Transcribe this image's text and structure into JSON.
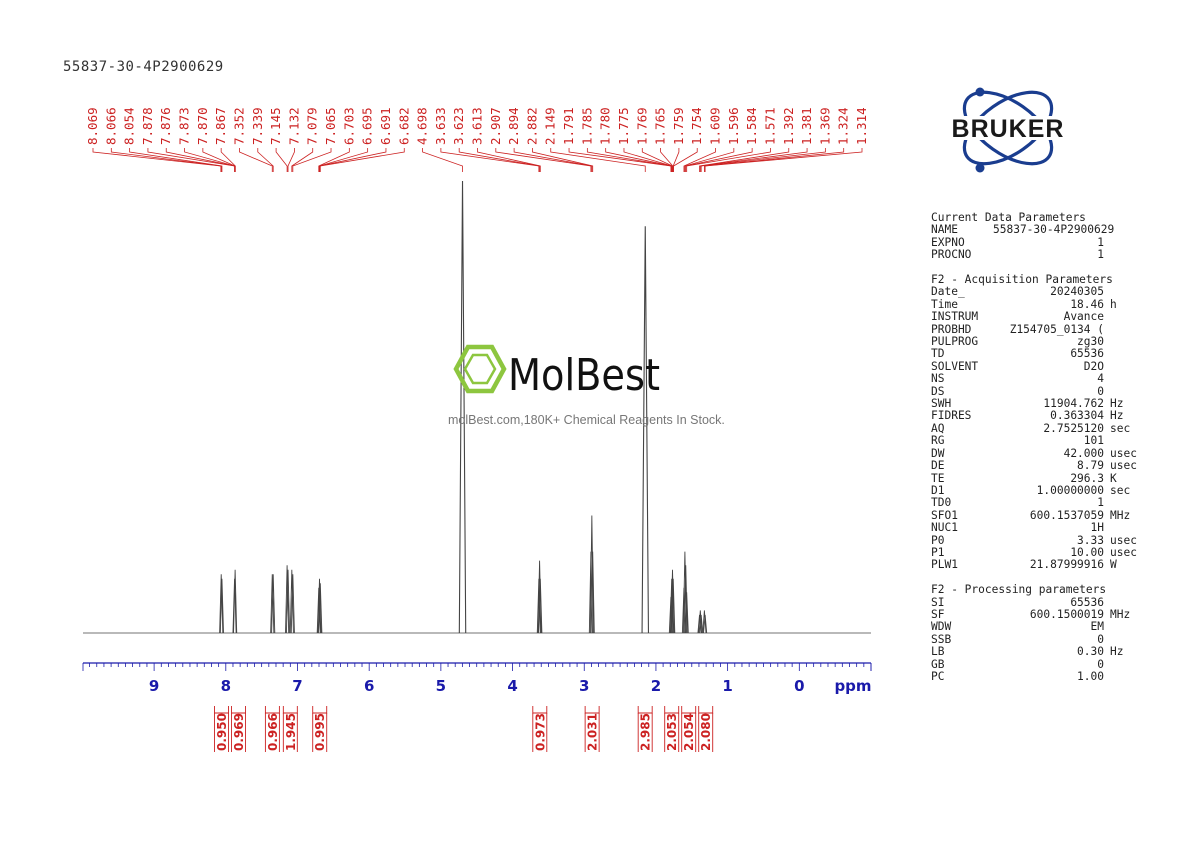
{
  "sample_title": "55837-30-4P2900629",
  "watermark": {
    "brand": "MolBest",
    "tagline": "molBest.com,180K+ Chemical Reagents In Stock."
  },
  "logo": {
    "text": "BRUKER",
    "icon": "bruker-atom-logo"
  },
  "colors": {
    "peak_labels": "#cc2222",
    "axis": "#1a1aaa",
    "spectrum": "#444444",
    "logo": "#1a3d8f",
    "watermark_green": "#8dc63f"
  },
  "chart_data": {
    "type": "line",
    "title": "",
    "xlabel": "ppm",
    "ylabel": "",
    "xlim": [
      9.992,
      -1.0
    ],
    "x_reversed": true,
    "x_ticks": [
      9,
      8,
      7,
      6,
      5,
      4,
      3,
      2,
      1,
      0
    ],
    "x_tick_labels": [
      "9",
      "8",
      "7",
      "6",
      "5",
      "4",
      "3",
      "2",
      "1",
      "0"
    ],
    "grid": false,
    "peak_labels": [
      "8.069",
      "8.066",
      "8.054",
      "7.878",
      "7.876",
      "7.873",
      "7.870",
      "7.867",
      "7.352",
      "7.339",
      "7.145",
      "7.132",
      "7.079",
      "7.065",
      "6.703",
      "6.695",
      "6.691",
      "6.682",
      "4.698",
      "3.633",
      "3.623",
      "3.613",
      "2.907",
      "2.894",
      "2.882",
      "2.149",
      "1.791",
      "1.785",
      "1.780",
      "1.775",
      "1.769",
      "1.765",
      "1.759",
      "1.754",
      "1.609",
      "1.596",
      "1.584",
      "1.571",
      "1.392",
      "1.381",
      "1.369",
      "1.324",
      "1.314"
    ],
    "peaks": [
      {
        "ppm": 8.064,
        "height": 0.13
      },
      {
        "ppm": 8.054,
        "height": 0.12
      },
      {
        "ppm": 7.878,
        "height": 0.12
      },
      {
        "ppm": 7.87,
        "height": 0.14
      },
      {
        "ppm": 7.352,
        "height": 0.13
      },
      {
        "ppm": 7.339,
        "height": 0.13
      },
      {
        "ppm": 7.145,
        "height": 0.15
      },
      {
        "ppm": 7.132,
        "height": 0.14
      },
      {
        "ppm": 7.079,
        "height": 0.14
      },
      {
        "ppm": 7.065,
        "height": 0.13
      },
      {
        "ppm": 6.703,
        "height": 0.1
      },
      {
        "ppm": 6.693,
        "height": 0.12
      },
      {
        "ppm": 6.682,
        "height": 0.11
      },
      {
        "ppm": 4.698,
        "height": 1.0
      },
      {
        "ppm": 3.633,
        "height": 0.12
      },
      {
        "ppm": 3.623,
        "height": 0.16
      },
      {
        "ppm": 3.613,
        "height": 0.12
      },
      {
        "ppm": 2.907,
        "height": 0.18
      },
      {
        "ppm": 2.894,
        "height": 0.26
      },
      {
        "ppm": 2.882,
        "height": 0.18
      },
      {
        "ppm": 2.149,
        "height": 0.9
      },
      {
        "ppm": 1.791,
        "height": 0.08
      },
      {
        "ppm": 1.78,
        "height": 0.12
      },
      {
        "ppm": 1.769,
        "height": 0.14
      },
      {
        "ppm": 1.759,
        "height": 0.12
      },
      {
        "ppm": 1.609,
        "height": 0.1
      },
      {
        "ppm": 1.596,
        "height": 0.18
      },
      {
        "ppm": 1.584,
        "height": 0.15
      },
      {
        "ppm": 1.571,
        "height": 0.09
      },
      {
        "ppm": 1.392,
        "height": 0.04
      },
      {
        "ppm": 1.381,
        "height": 0.05
      },
      {
        "ppm": 1.369,
        "height": 0.04
      },
      {
        "ppm": 1.324,
        "height": 0.05
      },
      {
        "ppm": 1.314,
        "height": 0.04
      }
    ],
    "integrals": [
      {
        "value": "0.950",
        "ppm": 8.06
      },
      {
        "value": "0.969",
        "ppm": 7.87
      },
      {
        "value": "0.966",
        "ppm": 7.35
      },
      {
        "value": "1.945",
        "ppm": 7.1
      },
      {
        "value": "0.995",
        "ppm": 6.69
      },
      {
        "value": "0.973",
        "ppm": 3.62
      },
      {
        "value": "2.031",
        "ppm": 2.89
      },
      {
        "value": "2.985",
        "ppm": 2.15
      },
      {
        "value": "2.053",
        "ppm": 1.78
      },
      {
        "value": "2.054",
        "ppm": 1.59
      },
      {
        "value": "2.080",
        "ppm": 1.35
      }
    ]
  },
  "parameters": [
    {
      "title": "Current Data Parameters",
      "rows": [
        {
          "key": "NAME",
          "value": "55837-30-4P2900629",
          "unit": ""
        },
        {
          "key": "EXPNO",
          "value": "1",
          "unit": ""
        },
        {
          "key": "PROCNO",
          "value": "1",
          "unit": ""
        }
      ]
    },
    {
      "title": "F2 - Acquisition Parameters",
      "rows": [
        {
          "key": "Date_",
          "value": "20240305",
          "unit": ""
        },
        {
          "key": "Time",
          "value": "18.46",
          "unit": "h"
        },
        {
          "key": "INSTRUM",
          "value": "Avance",
          "unit": ""
        },
        {
          "key": "PROBHD",
          "value": "Z154705_0134 (",
          "unit": ""
        },
        {
          "key": "PULPROG",
          "value": "zg30",
          "unit": ""
        },
        {
          "key": "TD",
          "value": "65536",
          "unit": ""
        },
        {
          "key": "SOLVENT",
          "value": "D2O",
          "unit": ""
        },
        {
          "key": "NS",
          "value": "4",
          "unit": ""
        },
        {
          "key": "DS",
          "value": "0",
          "unit": ""
        },
        {
          "key": "SWH",
          "value": "11904.762",
          "unit": "Hz"
        },
        {
          "key": "FIDRES",
          "value": "0.363304",
          "unit": "Hz"
        },
        {
          "key": "AQ",
          "value": "2.7525120",
          "unit": "sec"
        },
        {
          "key": "RG",
          "value": "101",
          "unit": ""
        },
        {
          "key": "DW",
          "value": "42.000",
          "unit": "usec"
        },
        {
          "key": "DE",
          "value": "8.79",
          "unit": "usec"
        },
        {
          "key": "TE",
          "value": "296.3",
          "unit": "K"
        },
        {
          "key": "D1",
          "value": "1.00000000",
          "unit": "sec"
        },
        {
          "key": "TD0",
          "value": "1",
          "unit": ""
        },
        {
          "key": "SFO1",
          "value": "600.1537059",
          "unit": "MHz"
        },
        {
          "key": "NUC1",
          "value": "1H",
          "unit": ""
        },
        {
          "key": "P0",
          "value": "3.33",
          "unit": "usec"
        },
        {
          "key": "P1",
          "value": "10.00",
          "unit": "usec"
        },
        {
          "key": "PLW1",
          "value": "21.87999916",
          "unit": "W"
        }
      ]
    },
    {
      "title": "F2 - Processing parameters",
      "rows": [
        {
          "key": "SI",
          "value": "65536",
          "unit": ""
        },
        {
          "key": "SF",
          "value": "600.1500019",
          "unit": "MHz"
        },
        {
          "key": "WDW",
          "value": "EM",
          "unit": ""
        },
        {
          "key": "SSB",
          "value": "0",
          "unit": ""
        },
        {
          "key": "LB",
          "value": "0.30",
          "unit": "Hz"
        },
        {
          "key": "GB",
          "value": "0",
          "unit": ""
        },
        {
          "key": "PC",
          "value": "1.00",
          "unit": ""
        }
      ]
    }
  ]
}
